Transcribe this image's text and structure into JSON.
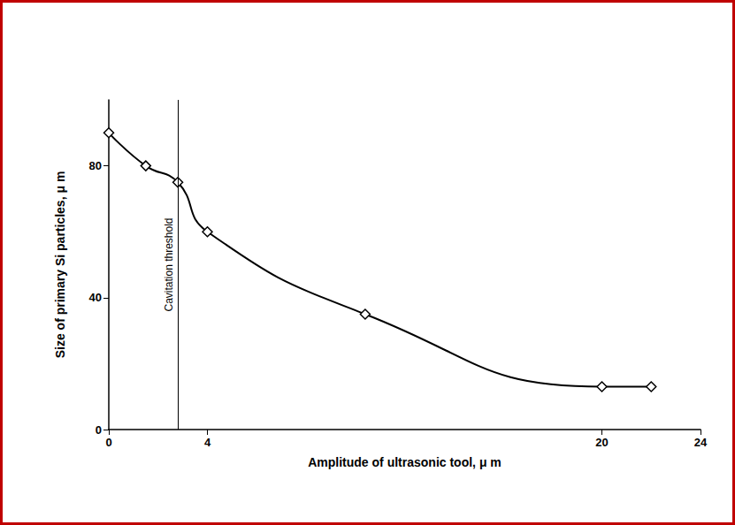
{
  "chart_data": {
    "type": "line",
    "x_label": "Amplitude of ultrasonic tool, μ m",
    "y_label": "Size of primary Si particles, μ m",
    "x": [
      0,
      1.5,
      2.8,
      4,
      10.4,
      20,
      22
    ],
    "values": [
      90,
      80,
      75,
      60,
      35,
      13,
      13
    ],
    "color": "#000000",
    "marker": "diamond",
    "xlim": [
      0,
      24
    ],
    "xticks": [
      0,
      4,
      20,
      24
    ],
    "ylim": [
      0,
      100
    ],
    "yticks": [
      0,
      40,
      80
    ],
    "grid": false,
    "annotations": [
      {
        "text": "Cavitation threshold",
        "x": 2.8
      }
    ]
  }
}
